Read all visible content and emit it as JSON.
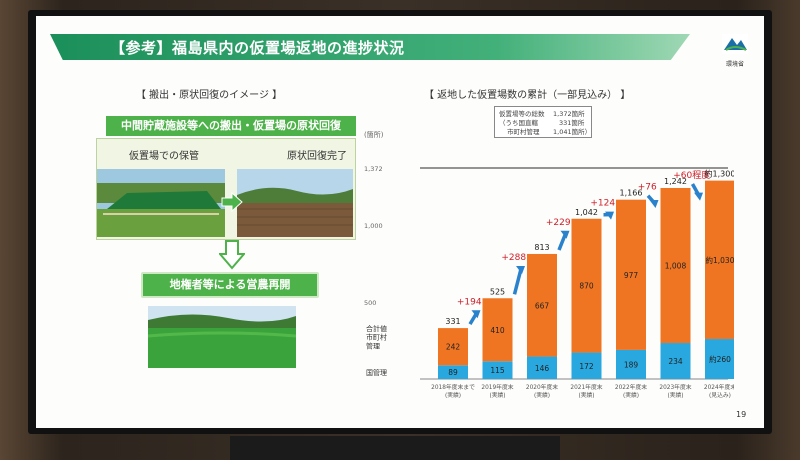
{
  "slide": {
    "title": "【参考】福島県内の仮置場返地の進捗状況",
    "logo_text": "環境省",
    "page_number": "19"
  },
  "left": {
    "section_title": "【 搬出・原状回復のイメージ 】",
    "panel_header": "中間貯蔵施設等への搬出・仮置場の原状回復",
    "before_label": "仮置場での保管",
    "after_label": "原状回復完了",
    "result_label": "地権者等による営農再開"
  },
  "right": {
    "section_title": "【 返地した仮置場数の累計（一部見込み） 】",
    "unit": "(箇所)",
    "legend_box": [
      {
        "label": "仮置場等の総数",
        "value": "1,372箇所"
      },
      {
        "label": "（うち国直轄",
        "value": "331箇所"
      },
      {
        "label": "市町村管理",
        "value": "1,041箇所）"
      }
    ],
    "total_line_label": "1,372",
    "row_labels": {
      "total": "合計値",
      "municipal": "市町村\n管理",
      "national": "国管理"
    }
  },
  "chart_data": {
    "type": "bar",
    "stacked": true,
    "categories": [
      "2018年度末まで\n(実績)",
      "2019年度末\n(実績)",
      "2020年度末\n(実績)",
      "2021年度末\n(実績)",
      "2022年度末\n(実績)",
      "2023年度末\n(実績)",
      "2024年度末\n(見込み)"
    ],
    "series": [
      {
        "name": "国管理",
        "values": [
          89,
          115,
          146,
          172,
          189,
          234,
          260
        ],
        "color": "#29a8e0",
        "labels": [
          "89",
          "115",
          "146",
          "172",
          "189",
          "234",
          "約260"
        ]
      },
      {
        "name": "市町村管理",
        "values": [
          242,
          410,
          667,
          870,
          977,
          1008,
          1030
        ],
        "color": "#f07522",
        "labels": [
          "242",
          "410",
          "667",
          "870",
          "977",
          "1,008",
          "約1,030"
        ]
      }
    ],
    "totals": [
      "331",
      "525",
      "813",
      "1,042",
      "1,166",
      "1,242",
      "約1,300"
    ],
    "increments": [
      "+194",
      "+288",
      "+229",
      "+124",
      "+76",
      "+60程度"
    ],
    "yticks": [
      "500",
      "1,000",
      "1,372"
    ],
    "ylim": [
      0,
      1372
    ],
    "reference_line": 1372,
    "colors": {
      "increment_text": "#d0202a",
      "arrow": "#2a82cc",
      "reference_line": "#555555"
    }
  }
}
